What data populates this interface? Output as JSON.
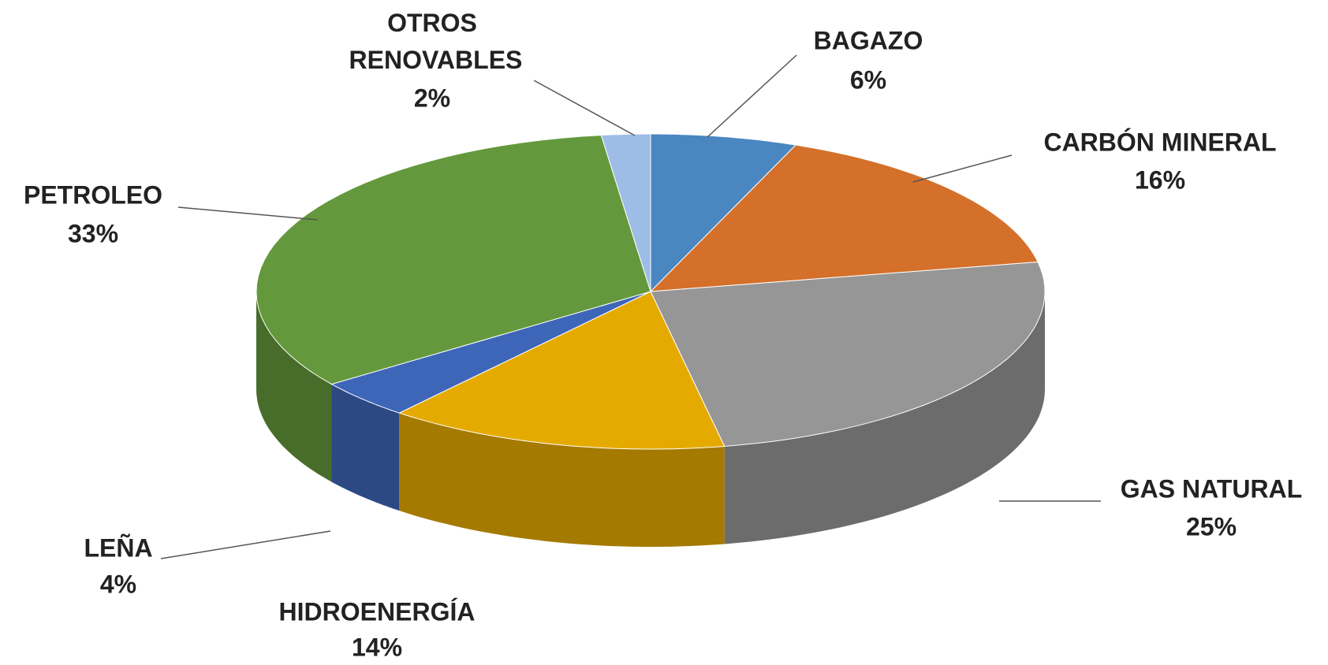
{
  "chart_data": {
    "type": "pie3d",
    "categories": [
      "BAGAZO",
      "CARBÓN MINERAL",
      "GAS NATURAL",
      "HIDROENERGÍA",
      "LEÑA",
      "PETROLEO",
      "OTROS RENOVABLES"
    ],
    "values": [
      6,
      16,
      25,
      14,
      4,
      33,
      2
    ],
    "value_labels": [
      "6%",
      "16%",
      "25%",
      "14%",
      "4%",
      "33%",
      "2%"
    ],
    "colors": [
      "#4a86c0",
      "#d4702a",
      "#969696",
      "#e5aa00",
      "#3d66b8",
      "#64983c",
      "#9dbde6"
    ]
  }
}
